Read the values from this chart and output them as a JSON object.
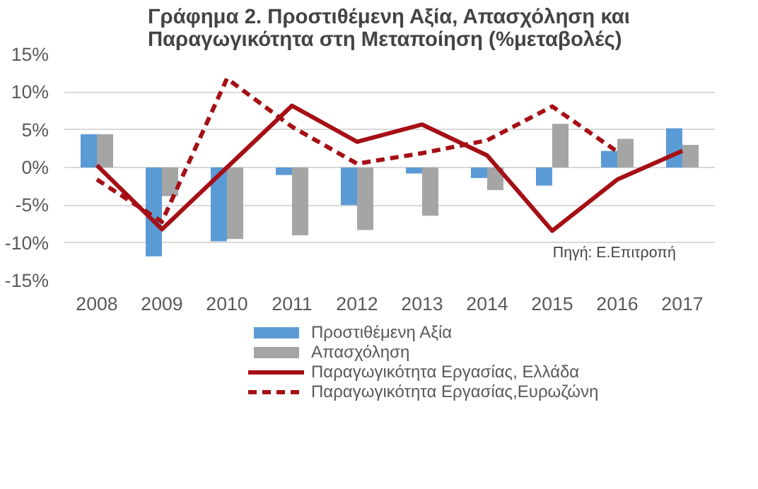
{
  "chart_data": {
    "type": "bar",
    "title": "Γράφημα 2. Προστιθέμενη Αξία, Απασχόληση και\nΠαραγωγικότητα στη Μεταποίηση (%μεταβολές)",
    "categories": [
      "2008",
      "2009",
      "2010",
      "2011",
      "2012",
      "2013",
      "2014",
      "2015",
      "2016",
      "2017"
    ],
    "series": [
      {
        "name": "Προστιθέμενη Αξία",
        "color": "#5b9bd5",
        "values": [
          4.4,
          -11.8,
          -9.8,
          -1.0,
          -5.0,
          -0.8,
          -1.4,
          -2.4,
          2.2,
          5.2
        ]
      },
      {
        "name": "Απασχόληση",
        "color": "#a5a5a5",
        "values": [
          4.4,
          -3.8,
          -9.5,
          -9.0,
          -8.3,
          -6.4,
          -3.0,
          5.8,
          3.8,
          3.0
        ]
      },
      {
        "name": "Παραγωγικότητα Εργασίας, Ελλάδα",
        "type": "line",
        "line_style": "solid",
        "color": "#a50f15",
        "values": [
          0.3,
          -8.2,
          0.0,
          8.2,
          3.4,
          5.7,
          1.6,
          -8.4,
          -1.6,
          2.2
        ]
      },
      {
        "name": "Παραγωγικότητα Εργασίας,Ευρωζώνη",
        "type": "line",
        "line_style": "dashed",
        "color": "#a50f15",
        "values": [
          -1.6,
          -7.2,
          11.8,
          5.4,
          0.5,
          1.9,
          3.6,
          8.1,
          2.1,
          null
        ]
      }
    ],
    "ylim": [
      -15,
      15
    ],
    "yticks": [
      {
        "value": -15,
        "label": "-15%"
      },
      {
        "value": -10,
        "label": "-10%"
      },
      {
        "value": -5,
        "label": "-5%"
      },
      {
        "value": 0,
        "label": "0%"
      },
      {
        "value": 5,
        "label": "5%"
      },
      {
        "value": 10,
        "label": "10%"
      },
      {
        "value": 15,
        "label": "15%"
      }
    ],
    "grid": "y",
    "legend": "bottom",
    "annotations": [
      "Πηγή: Ε.Επιτροπή"
    ]
  }
}
